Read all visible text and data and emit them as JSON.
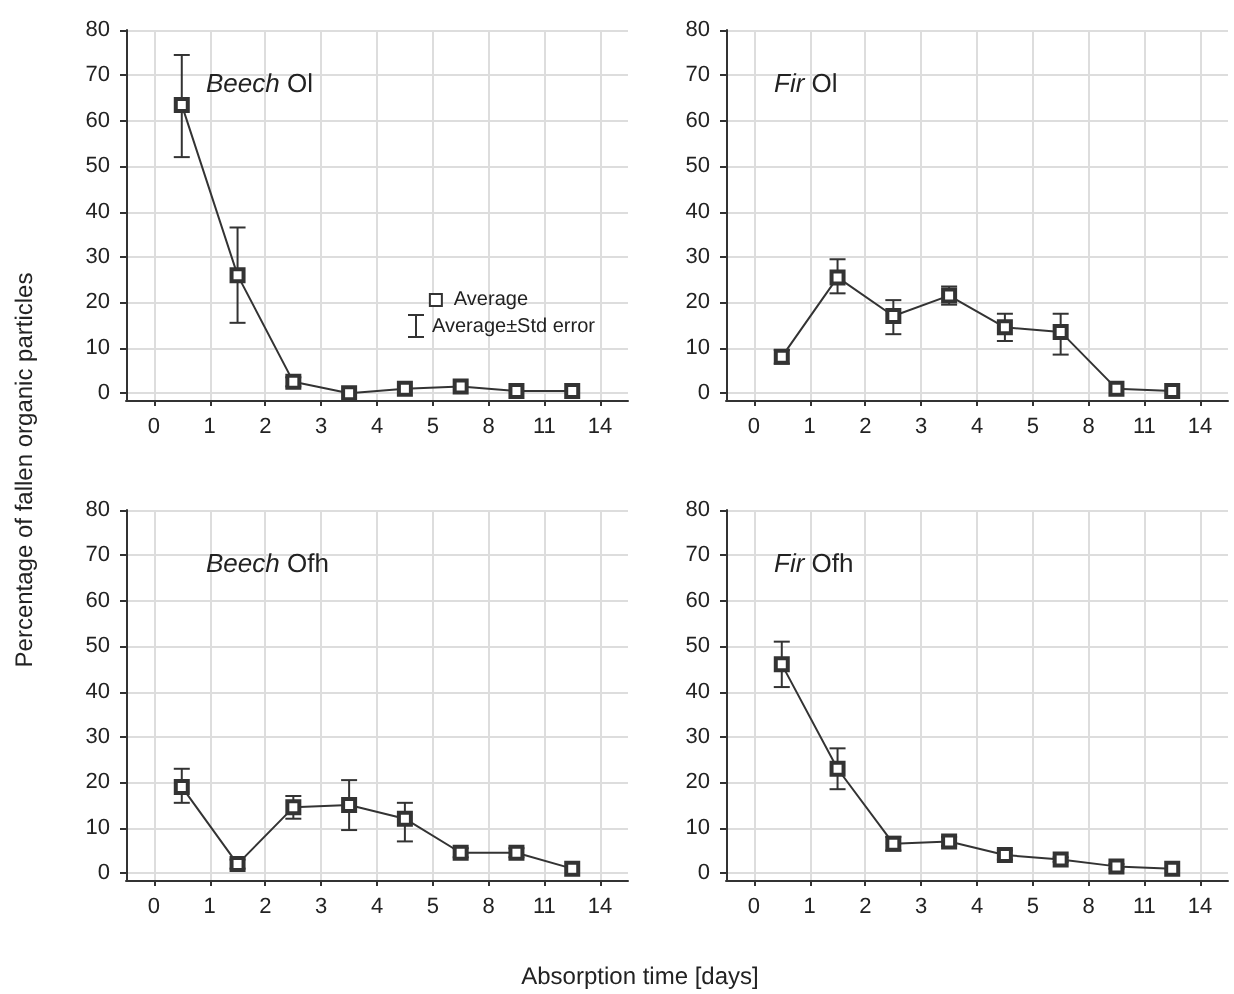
{
  "chart_data": [
    {
      "type": "line",
      "title": "Beech Ol",
      "ylabel": "Percentage of fallen organic particles",
      "annotations": [
        "Average±Std error"
      ],
      "legend": "right",
      "grid": true,
      "marker": "square",
      "line_style": "solid",
      "ylim": [
        -1.5,
        80
      ],
      "yticks": [
        0,
        10,
        20,
        30,
        40,
        50,
        60,
        70,
        80
      ],
      "categories": [
        null,
        "0",
        null,
        "1",
        null,
        "2",
        null,
        "3",
        null,
        "4",
        null,
        "5",
        null,
        "8",
        null,
        "11",
        null,
        "14",
        null
      ],
      "series": [
        {
          "name": "Average",
          "color": "#333333",
          "values": [
            null,
            null,
            63.5,
            null,
            26,
            null,
            2.5,
            null,
            0,
            null,
            1,
            null,
            1.5,
            null,
            0.5,
            null,
            0.5,
            null,
            null
          ],
          "errors": [
            null,
            null,
            [
              52,
              74.5
            ],
            null,
            [
              15.5,
              36.5
            ],
            null,
            [
              1.5,
              3.5
            ],
            null,
            null,
            null,
            null,
            null,
            null,
            null,
            null,
            null,
            null,
            null,
            null
          ]
        }
      ]
    },
    {
      "type": "line",
      "title": "Fir Ol",
      "grid": true,
      "marker": "square",
      "line_style": "solid",
      "ylim": [
        -1.5,
        80
      ],
      "yticks": [
        0,
        10,
        20,
        30,
        40,
        50,
        60,
        70,
        80
      ],
      "categories": [
        null,
        "0",
        null,
        "1",
        null,
        "2",
        null,
        "3",
        null,
        "4",
        null,
        "5",
        null,
        "8",
        null,
        "11",
        null,
        "14",
        null
      ],
      "series": [
        {
          "color": "#333333",
          "values": [
            null,
            null,
            8,
            null,
            25.5,
            null,
            17,
            null,
            21.5,
            null,
            14.5,
            null,
            13.5,
            null,
            1,
            null,
            0.5,
            null,
            null
          ],
          "errors": [
            null,
            null,
            [
              6.5,
              9.5
            ],
            null,
            [
              22,
              29.5
            ],
            null,
            [
              13,
              20.5
            ],
            null,
            [
              19.5,
              23.5
            ],
            null,
            [
              11.5,
              17.5
            ],
            null,
            [
              8.5,
              17.5
            ],
            null,
            null,
            null,
            null,
            null,
            null
          ]
        }
      ]
    },
    {
      "type": "line",
      "title": "Beech Ofh",
      "xlabel": "Absorption time [days]",
      "grid": true,
      "marker": "square",
      "line_style": "solid",
      "ylim": [
        -1.5,
        80
      ],
      "yticks": [
        0,
        10,
        20,
        30,
        40,
        50,
        60,
        70,
        80
      ],
      "categories": [
        null,
        "0",
        null,
        "1",
        null,
        "2",
        null,
        "3",
        null,
        "4",
        null,
        "5",
        null,
        "8",
        null,
        "11",
        null,
        "14",
        null
      ],
      "series": [
        {
          "color": "#333333",
          "values": [
            null,
            null,
            19,
            null,
            2,
            null,
            14.5,
            null,
            15,
            null,
            12,
            null,
            4.5,
            null,
            4.5,
            null,
            1,
            null,
            null
          ],
          "errors": [
            null,
            null,
            [
              15.5,
              23
            ],
            null,
            [
              1,
              3
            ],
            null,
            [
              12,
              17
            ],
            null,
            [
              9.5,
              20.5
            ],
            null,
            [
              7,
              15.5
            ],
            null,
            [
              3.5,
              5.5
            ],
            null,
            [
              3.5,
              5.5
            ],
            null,
            null,
            null,
            null
          ]
        }
      ]
    },
    {
      "type": "line",
      "title": "Fir Ofh",
      "grid": true,
      "marker": "square",
      "line_style": "solid",
      "ylim": [
        -1.5,
        80
      ],
      "yticks": [
        0,
        10,
        20,
        30,
        40,
        50,
        60,
        70,
        80
      ],
      "categories": [
        null,
        "0",
        null,
        "1",
        null,
        "2",
        null,
        "3",
        null,
        "4",
        null,
        "5",
        null,
        "8",
        null,
        "11",
        null,
        "14",
        null
      ],
      "series": [
        {
          "color": "#333333",
          "values": [
            null,
            null,
            46,
            null,
            23,
            null,
            6.5,
            null,
            7,
            null,
            4,
            null,
            3,
            null,
            1.5,
            null,
            1,
            null,
            null
          ],
          "errors": [
            null,
            null,
            [
              41,
              51
            ],
            null,
            [
              18.5,
              27.5
            ],
            null,
            [
              5,
              8
            ],
            null,
            [
              6,
              8
            ],
            null,
            [
              3,
              5
            ],
            null,
            [
              2.5,
              3.5
            ],
            null,
            [
              1,
              2
            ],
            null,
            null,
            null,
            null
          ]
        }
      ]
    }
  ]
}
